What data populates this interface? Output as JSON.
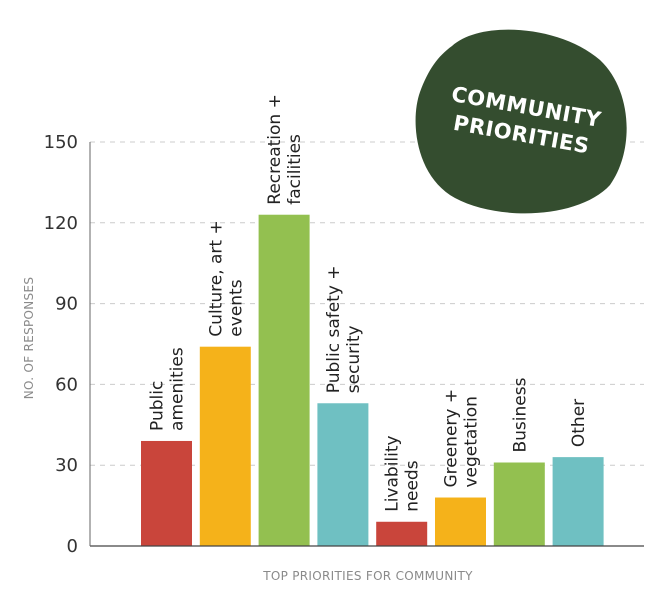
{
  "chart_data": {
    "type": "bar",
    "categories": [
      [
        "Public",
        "amenities"
      ],
      [
        "Culture, art +",
        "events"
      ],
      [
        "Recreation +",
        "facilities"
      ],
      [
        "Public safety +",
        "security"
      ],
      [
        "Livability",
        "needs"
      ],
      [
        "Greenery +",
        "vegetation"
      ],
      [
        "Business"
      ],
      [
        "Other"
      ]
    ],
    "values": [
      39,
      74,
      123,
      53,
      9,
      18,
      31,
      33
    ],
    "colors": [
      "#c9453b",
      "#f5b21a",
      "#93c050",
      "#6fc0c2",
      "#c9453b",
      "#f5b21a",
      "#93c050",
      "#6fc0c2"
    ],
    "ylabel": "NO. OF RESPONSES",
    "xlabel": "TOP PRIORITIES FOR COMMUNITY",
    "ylim": [
      0,
      150
    ],
    "yticks": [
      0,
      30,
      60,
      90,
      120,
      150
    ],
    "grid": true,
    "badge": {
      "lines": [
        "COMMUNITY",
        "PRIORITIES"
      ],
      "color": "#344d2f"
    }
  }
}
